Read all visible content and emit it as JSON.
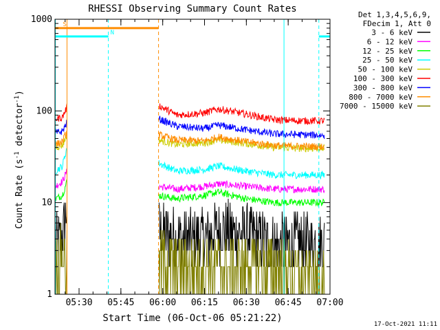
{
  "chart_data": {
    "type": "line",
    "title": "RHESSI Observing Summary Count Rates",
    "xlabel": "Start Time (06-Oct-06 05:21:22)",
    "ylabel": "Count Rate (s⁻¹ detector⁻¹)",
    "y_scale": "log",
    "ylim": [
      1,
      1000
    ],
    "xlim": [
      "05:21:22",
      "07:00:00"
    ],
    "x_ticks": [
      "05:30",
      "05:45",
      "06:00",
      "06:15",
      "06:30",
      "06:45",
      "07:00"
    ],
    "y_ticks": [
      "1",
      "10",
      "100",
      "1000"
    ],
    "legend_header": [
      "Det 1,3,4,5,6,9,",
      "FDecim 1, Att 0"
    ],
    "legend_position": "right",
    "data_gap": [
      "05:25:40",
      "05:58:30"
    ],
    "series": [
      {
        "name": "3 - 6 keV",
        "color": "#000000",
        "x": [
          "05:21:30",
          "05:24:00",
          "05:25:40",
          "05:58:30",
          "06:05",
          "06:15",
          "06:20",
          "06:30",
          "06:40",
          "06:50",
          "06:58"
        ],
        "values": [
          3.5,
          4,
          9,
          5,
          4,
          4,
          5,
          4.5,
          3.5,
          3.5,
          3.5
        ]
      },
      {
        "name": "6 - 12 keV",
        "color": "#ff00ff",
        "x": [
          "05:21:30",
          "05:24:00",
          "05:25:40",
          "05:58:30",
          "06:05",
          "06:15",
          "06:20",
          "06:30",
          "06:40",
          "06:50",
          "06:58"
        ],
        "values": [
          15,
          17,
          22,
          15,
          14,
          15,
          16,
          15,
          14,
          14,
          14
        ]
      },
      {
        "name": "12 - 25 keV",
        "color": "#00ff00",
        "x": [
          "05:21:30",
          "05:24:00",
          "05:25:40",
          "05:58:30",
          "06:05",
          "06:15",
          "06:20",
          "06:30",
          "06:40",
          "06:50",
          "06:58"
        ],
        "values": [
          11,
          12,
          17,
          12,
          11,
          12,
          13,
          11,
          10,
          10,
          10
        ]
      },
      {
        "name": "25 - 50 keV",
        "color": "#00ffff",
        "x": [
          "05:21:30",
          "05:24:00",
          "05:25:40",
          "05:58:30",
          "06:05",
          "06:15",
          "06:20",
          "06:30",
          "06:40",
          "06:50",
          "06:58"
        ],
        "values": [
          22,
          25,
          40,
          27,
          22,
          23,
          25,
          22,
          20,
          20,
          20
        ]
      },
      {
        "name": "50 - 100 keV",
        "color": "#cccc00",
        "x": [
          "05:21:30",
          "05:24:00",
          "05:25:40",
          "05:58:30",
          "06:05",
          "06:15",
          "06:20",
          "06:30",
          "06:40",
          "06:50",
          "06:58"
        ],
        "values": [
          40,
          42,
          55,
          48,
          43,
          45,
          48,
          44,
          40,
          39,
          39
        ]
      },
      {
        "name": "100 - 300 keV",
        "color": "#ff0000",
        "x": [
          "05:21:30",
          "05:24:00",
          "05:25:40",
          "05:58:30",
          "06:05",
          "06:15",
          "06:20",
          "06:30",
          "06:40",
          "06:50",
          "06:58"
        ],
        "values": [
          82,
          85,
          110,
          115,
          90,
          95,
          105,
          92,
          80,
          78,
          78
        ]
      },
      {
        "name": "300 - 800 keV",
        "color": "#0000ff",
        "x": [
          "05:21:30",
          "05:24:00",
          "05:25:40",
          "05:58:30",
          "06:05",
          "06:15",
          "06:20",
          "06:30",
          "06:40",
          "06:50",
          "06:58"
        ],
        "values": [
          57,
          60,
          75,
          82,
          68,
          64,
          70,
          62,
          56,
          55,
          54
        ]
      },
      {
        "name": "800 - 7000 keV",
        "color": "#ff8c00",
        "x": [
          "05:21:30",
          "05:24:00",
          "05:25:40",
          "05:58:30",
          "06:05",
          "06:15",
          "06:20",
          "06:30",
          "06:40",
          "06:50",
          "06:58"
        ],
        "values": [
          43,
          46,
          60,
          55,
          48,
          47,
          52,
          46,
          42,
          41,
          41
        ]
      },
      {
        "name": "7000 - 15000 keV",
        "color": "#808000",
        "x": [
          "05:21:30",
          "05:24:00",
          "05:25:40",
          "05:58:30",
          "06:05",
          "06:15",
          "06:20",
          "06:30",
          "06:40",
          "06:50",
          "06:58"
        ],
        "values": [
          2.5,
          2.5,
          2.5,
          2.5,
          2,
          2,
          2,
          2,
          2,
          1.5,
          1.5
        ]
      }
    ],
    "annotations": [
      {
        "label": "S",
        "color": "#ff8c00",
        "from": "05:21:30",
        "to": "05:58:30",
        "level": 800
      },
      {
        "label": "N",
        "color": "#00ffff",
        "from": "05:21:30",
        "to": "05:40:30",
        "level": 650
      },
      {
        "label": "",
        "color": "#00ffff",
        "from": "06:56:00",
        "to": "07:00:00",
        "level": 650
      }
    ],
    "vlines": [
      {
        "x": "05:21:30",
        "color": "#00ffff",
        "style": "solid"
      },
      {
        "x": "05:25:40",
        "color": "#ff8c00",
        "style": "solid"
      },
      {
        "x": "05:40:30",
        "color": "#00ffff",
        "style": "dashed"
      },
      {
        "x": "05:58:30",
        "color": "#ff8c00",
        "style": "dashed"
      },
      {
        "x": "06:43:30",
        "color": "#00ffff",
        "style": "solid"
      },
      {
        "x": "06:56:00",
        "color": "#00ffff",
        "style": "dashed"
      }
    ],
    "grid": false
  },
  "footer": {
    "timestamp": "17-Oct-2021 11:11"
  }
}
